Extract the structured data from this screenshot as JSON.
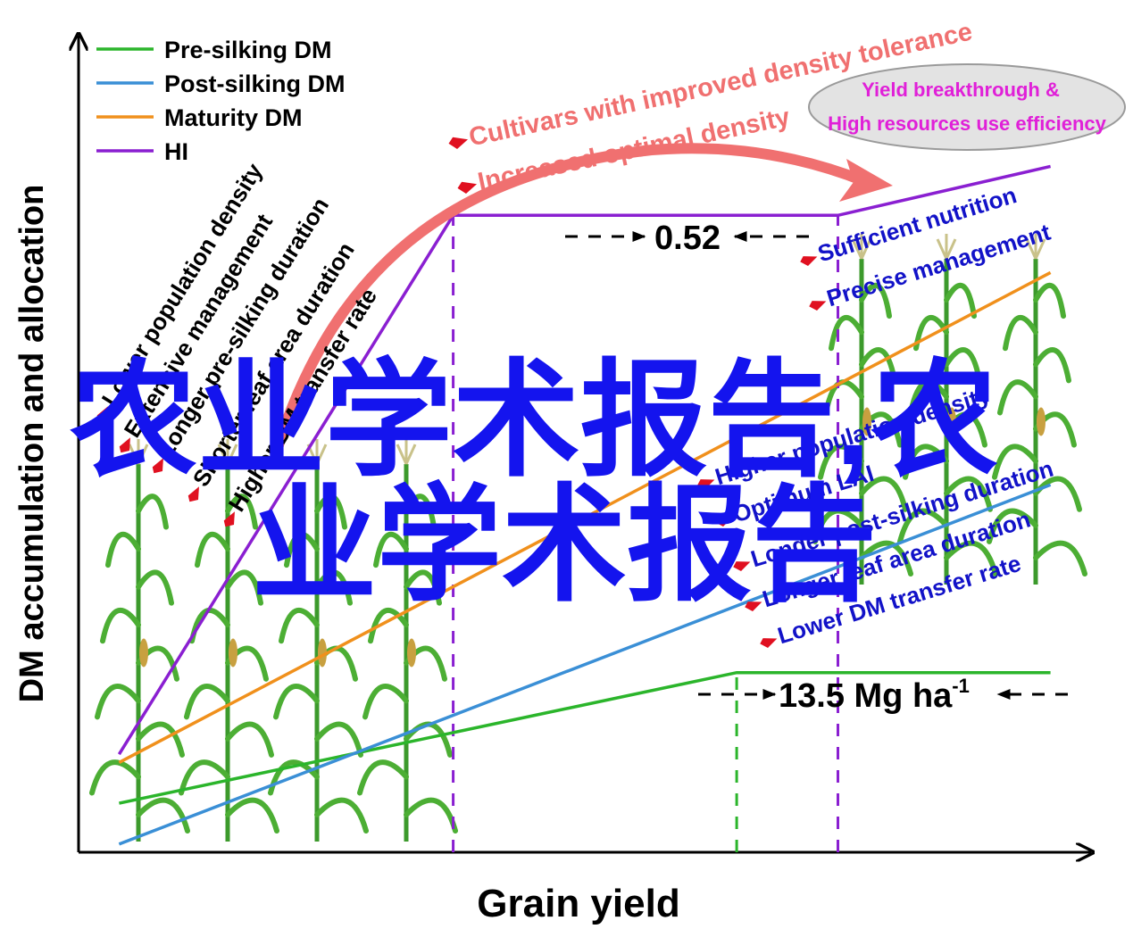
{
  "chart_data": {
    "type": "line",
    "xlabel": "Grain yield",
    "ylabel": "DM accumulation and allocation",
    "grid": false,
    "legend": {
      "placement": "top-left",
      "entries": [
        {
          "name": "Pre-silking DM",
          "color": "#2bb52b"
        },
        {
          "name": "Post-silking DM",
          "color": "#3a8fd6"
        },
        {
          "name": "Maturity DM",
          "color": "#f0901c"
        },
        {
          "name": "HI",
          "color": "#8a1fd1"
        }
      ]
    },
    "x_range": [
      0,
      100
    ],
    "y_range": [
      0,
      100
    ],
    "series": [
      {
        "name": "Pre-silking DM",
        "color": "#2bb52b",
        "points": [
          [
            4,
            6
          ],
          [
            65,
            22
          ],
          [
            96,
            22
          ]
        ]
      },
      {
        "name": "Post-silking DM",
        "color": "#3a8fd6",
        "points": [
          [
            4,
            1
          ],
          [
            96,
            45
          ]
        ]
      },
      {
        "name": "Maturity DM",
        "color": "#f0901c",
        "points": [
          [
            4,
            11
          ],
          [
            96,
            71
          ]
        ]
      },
      {
        "name": "HI",
        "color": "#8a1fd1",
        "points": [
          [
            4,
            12
          ],
          [
            37,
            78
          ],
          [
            75,
            78
          ],
          [
            96,
            84
          ]
        ]
      }
    ],
    "vlines": [
      {
        "x": 37,
        "y_top": 78,
        "color": "#8a1fd1"
      },
      {
        "x": 65,
        "y_top": 22,
        "color": "#2bb52b"
      },
      {
        "x": 75,
        "y_top": 78,
        "color": "#8a1fd1"
      }
    ],
    "annotations": {
      "hi_value": "0.52",
      "yield_value": "13.5 Mg ha",
      "yield_unit_sup": "-1",
      "arrow_texts": [
        "Cultivars with improved density tolerance",
        "Increased optimal density"
      ],
      "ellipse_lines": [
        "Yield breakthrough &",
        "High resources use efficiency"
      ],
      "left_factors": [
        "Lower population density",
        "Extensive management",
        "Longer pre-silking duration",
        "Shorter leaf area duration",
        "Higher DM transfer rate"
      ],
      "right_top_factors": [
        "Sufficient nutrition",
        "Precise management"
      ],
      "right_factors": [
        "Higher population density",
        "Optimum LAI",
        "Longer post-silking duration",
        "Longer leaf area duration",
        "Lower DM transfer rate"
      ]
    },
    "watermark": "农业学术报告,农业学术报告",
    "watermark_lines": [
      "农业学术报告,农",
      "业学术报告"
    ]
  }
}
